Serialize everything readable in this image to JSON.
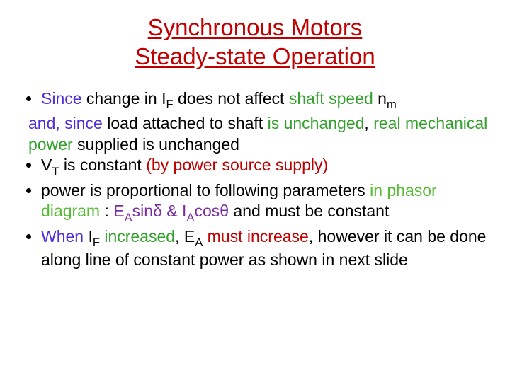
{
  "title_line1": "Synchronous Motors",
  "title_line2": "Steady-state Operation",
  "b1_p1": "Since",
  "b1_p2": " change in I",
  "b1_sub1": "F",
  "b1_p3": " does not affect ",
  "b1_p4": "shaft speed",
  "b1_p5": " n",
  "b1_sub2": "m",
  "cont_p1": " and,  since",
  "cont_p2": " load attached to shaft",
  "cont_p3": " is unchanged",
  "cont_p4": ", ",
  "cont_p5": "real mechanical power",
  "cont_p6": " supplied is unchanged",
  "b2_p1": "V",
  "b2_sub": "T",
  "b2_p2": " is constant ",
  "b2_p3": "(by power source supply)",
  "b3_p1": "power is proportional to following parameters",
  "b3_p2": " in phasor diagram",
  "b3_p3": " : ",
  "b3_p4": "E",
  "b3_sub1": "A",
  "b3_p5": "sinδ & I",
  "b3_sub2": "A",
  "b3_p6": "cosθ",
  "b3_p7": " and must be constant",
  "b4_p1": "When",
  "b4_p2": " I",
  "b4_sub1": "F",
  "b4_p3": " increased",
  "b4_p4": ", ",
  "b4_p5": "E",
  "b4_sub2": "A",
  "b4_p6": " must increase",
  "b4_p7": ", however it can be done along line of constant power as shown in next slide"
}
